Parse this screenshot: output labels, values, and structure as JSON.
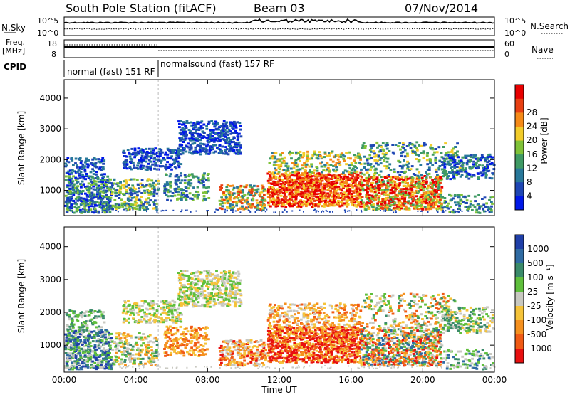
{
  "header": {
    "station": "South Pole Station (fitACF)",
    "beam": "Beam 03",
    "date": "07/Nov/2014"
  },
  "top_strip": {
    "left_label": "N.Sky",
    "left_ticks": [
      "10^5",
      "10^0"
    ],
    "right_ticks": [
      "10^5",
      "10^0"
    ],
    "right_label": "N.Search",
    "freq_label_1": "Freq.",
    "freq_label_2": "[MHz]",
    "freq_ticks": [
      "18",
      "8"
    ],
    "nave_ticks": [
      "60",
      "0"
    ],
    "nave_label": "Nave",
    "cpid_label": "CPID",
    "modes": [
      {
        "text": "normal (fast) 151 RF",
        "start_hour": 0
      },
      {
        "text": "normalsound (fast) 157 RF",
        "start_hour": 5.25
      }
    ]
  },
  "chart_data": [
    {
      "type": "heatmap",
      "name": "power",
      "ylabel": "Slant Range [km]",
      "ylim": [
        180,
        4600
      ],
      "yticks": [
        "1000",
        "2000",
        "3000",
        "4000"
      ],
      "xlim": [
        0,
        24
      ],
      "xticks": [
        "00:00",
        "04:00",
        "08:00",
        "12:00",
        "16:00",
        "20:00",
        "00:00"
      ],
      "colorbar_label": "Power [dB]",
      "colorbar_ticks": [
        "4",
        "8",
        "12",
        "16",
        "20",
        "24",
        "28"
      ],
      "colorbar_colors": [
        "#0018e8",
        "#1e46b4",
        "#28789a",
        "#3f9a64",
        "#7fc238",
        "#f2cc2a",
        "#f58a18",
        "#e84012",
        "#e80000"
      ],
      "colorbar_range": [
        0,
        32
      ]
    },
    {
      "type": "heatmap",
      "name": "velocity",
      "ylabel": "Slant Range [km]",
      "ylim": [
        180,
        4600
      ],
      "yticks": [
        "1000",
        "2000",
        "3000",
        "4000"
      ],
      "xlim": [
        0,
        24
      ],
      "xticks": [
        "00:00",
        "04:00",
        "08:00",
        "12:00",
        "16:00",
        "20:00",
        "00:00"
      ],
      "xlabel": "Time UT",
      "colorbar_label": "Velocity [m s⁻¹]",
      "colorbar_ticks": [
        "1000",
        "500",
        "100",
        "25",
        "-25",
        "-100",
        "-500",
        "-1000"
      ],
      "colorbar_colors": [
        "#1f3fa8",
        "#2f6ba3",
        "#3a8a6a",
        "#5fbf3c",
        "#c8c8c0",
        "#f5c33a",
        "#f5901e",
        "#f05a14",
        "#e81010"
      ]
    }
  ]
}
